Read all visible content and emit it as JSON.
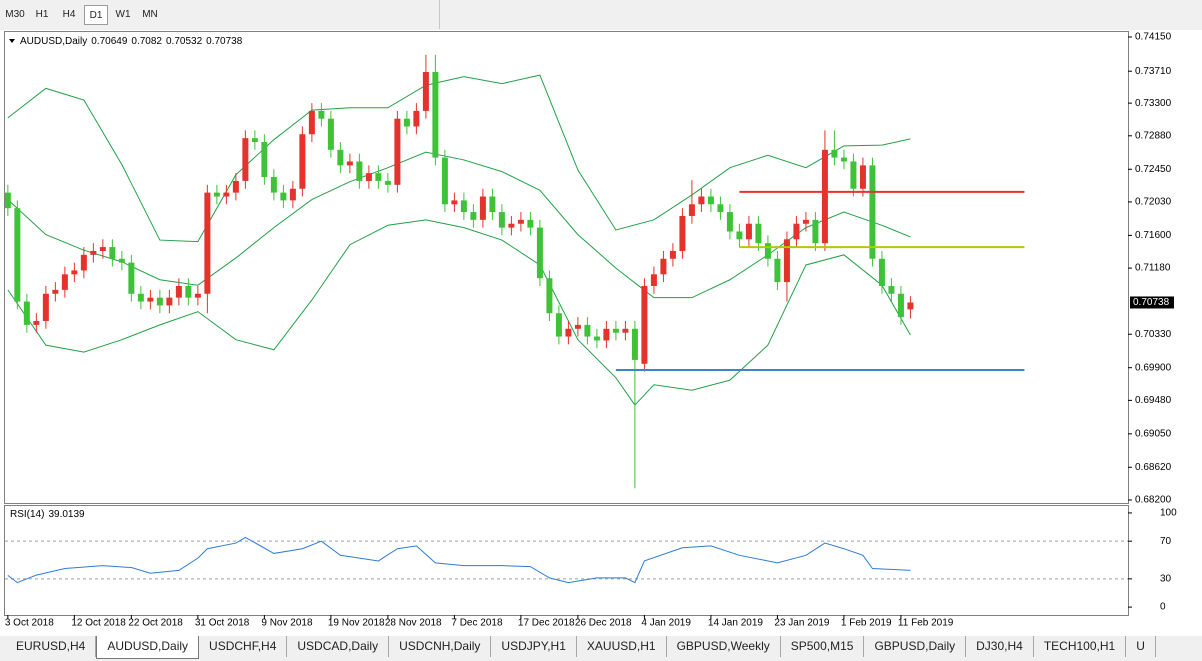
{
  "timeframes": {
    "items": [
      "M30",
      "H1",
      "H4",
      "D1",
      "W1",
      "MN"
    ],
    "active": 3
  },
  "chart_data": [
    {
      "type": "candlestick",
      "title": "AUDUSD,Daily",
      "open": [
        0.7215,
        0.7195,
        0.7075,
        0.7045,
        0.705,
        0.7085,
        0.709,
        0.711,
        0.7115,
        0.7135,
        0.714,
        0.7145,
        0.713,
        0.7125,
        0.7085,
        0.7075,
        0.708,
        0.707,
        0.708,
        0.7095,
        0.708,
        0.7085,
        0.7215,
        0.721,
        0.7215,
        0.723,
        0.7285,
        0.728,
        0.7235,
        0.7215,
        0.7205,
        0.722,
        0.729,
        0.732,
        0.731,
        0.727,
        0.725,
        0.7255,
        0.723,
        0.724,
        0.723,
        0.7225,
        0.731,
        0.73,
        0.732,
        0.737,
        0.726,
        0.72,
        0.7205,
        0.719,
        0.718,
        0.721,
        0.719,
        0.717,
        0.7175,
        0.718,
        0.717,
        0.7105,
        0.706,
        0.703,
        0.704,
        0.7045,
        0.703,
        0.7025,
        0.704,
        0.7035,
        0.704,
        0.6995,
        0.7095,
        0.711,
        0.713,
        0.714,
        0.7185,
        0.72,
        0.721,
        0.72,
        0.719,
        0.7165,
        0.7155,
        0.7175,
        0.715,
        0.713,
        0.71,
        0.7155,
        0.7175,
        0.718,
        0.715,
        0.727,
        0.726,
        0.7255,
        0.722,
        0.725,
        0.713,
        0.7095,
        0.7085,
        0.70649
      ],
      "high": [
        0.7225,
        0.7205,
        0.7085,
        0.706,
        0.7095,
        0.71,
        0.712,
        0.7125,
        0.7145,
        0.715,
        0.7155,
        0.7155,
        0.714,
        0.7135,
        0.7095,
        0.709,
        0.709,
        0.709,
        0.7105,
        0.7105,
        0.7095,
        0.7225,
        0.7225,
        0.7225,
        0.724,
        0.7295,
        0.7295,
        0.729,
        0.7245,
        0.7225,
        0.723,
        0.73,
        0.733,
        0.733,
        0.732,
        0.728,
        0.7265,
        0.7265,
        0.725,
        0.725,
        0.724,
        0.732,
        0.732,
        0.733,
        0.7392,
        0.7392,
        0.727,
        0.7215,
        0.7215,
        0.72,
        0.722,
        0.722,
        0.72,
        0.7185,
        0.719,
        0.719,
        0.718,
        0.7115,
        0.707,
        0.705,
        0.7055,
        0.7055,
        0.704,
        0.705,
        0.705,
        0.705,
        0.705,
        0.7105,
        0.712,
        0.714,
        0.715,
        0.7195,
        0.7231,
        0.722,
        0.722,
        0.721,
        0.72,
        0.7175,
        0.7185,
        0.7185,
        0.716,
        0.714,
        0.7165,
        0.7185,
        0.719,
        0.719,
        0.7295,
        0.7295,
        0.727,
        0.7265,
        0.726,
        0.726,
        0.714,
        0.7105,
        0.7095,
        0.7082
      ],
      "low": [
        0.7185,
        0.7065,
        0.7035,
        0.7035,
        0.704,
        0.7075,
        0.708,
        0.71,
        0.7105,
        0.7125,
        0.713,
        0.712,
        0.7115,
        0.7075,
        0.7065,
        0.7065,
        0.706,
        0.706,
        0.707,
        0.707,
        0.707,
        0.706,
        0.72,
        0.72,
        0.7205,
        0.722,
        0.727,
        0.7225,
        0.7205,
        0.7195,
        0.7195,
        0.721,
        0.728,
        0.73,
        0.726,
        0.724,
        0.724,
        0.722,
        0.722,
        0.722,
        0.7215,
        0.7215,
        0.729,
        0.729,
        0.731,
        0.725,
        0.719,
        0.719,
        0.718,
        0.717,
        0.717,
        0.718,
        0.716,
        0.716,
        0.7165,
        0.716,
        0.7095,
        0.705,
        0.702,
        0.702,
        0.703,
        0.702,
        0.7015,
        0.7015,
        0.7025,
        0.7025,
        0.6835,
        0.6985,
        0.7085,
        0.71,
        0.712,
        0.713,
        0.7175,
        0.719,
        0.719,
        0.718,
        0.7155,
        0.7145,
        0.7145,
        0.714,
        0.712,
        0.709,
        0.7075,
        0.7145,
        0.7165,
        0.714,
        0.714,
        0.725,
        0.7245,
        0.721,
        0.721,
        0.712,
        0.7085,
        0.7075,
        0.7045,
        0.70532
      ],
      "close": [
        0.7195,
        0.7075,
        0.7045,
        0.705,
        0.7085,
        0.709,
        0.711,
        0.7115,
        0.7135,
        0.714,
        0.7145,
        0.713,
        0.7125,
        0.7085,
        0.7075,
        0.708,
        0.707,
        0.708,
        0.7095,
        0.708,
        0.7085,
        0.7215,
        0.721,
        0.7215,
        0.723,
        0.7285,
        0.728,
        0.7235,
        0.7215,
        0.7205,
        0.722,
        0.729,
        0.732,
        0.731,
        0.727,
        0.725,
        0.7255,
        0.723,
        0.724,
        0.723,
        0.7225,
        0.731,
        0.73,
        0.732,
        0.737,
        0.726,
        0.72,
        0.7205,
        0.719,
        0.718,
        0.721,
        0.719,
        0.717,
        0.7175,
        0.718,
        0.717,
        0.7105,
        0.706,
        0.703,
        0.704,
        0.7045,
        0.703,
        0.7025,
        0.704,
        0.7035,
        0.704,
        0.7,
        0.7095,
        0.711,
        0.713,
        0.714,
        0.7185,
        0.72,
        0.721,
        0.72,
        0.719,
        0.7165,
        0.7155,
        0.7175,
        0.715,
        0.713,
        0.71,
        0.7155,
        0.7175,
        0.718,
        0.715,
        0.727,
        0.726,
        0.7255,
        0.722,
        0.725,
        0.713,
        0.7095,
        0.7085,
        0.7055,
        0.70738
      ],
      "up_color": "#e5322d",
      "down_color": "#3fc23a",
      "lines": [
        {
          "color": "#22a046",
          "x": [
            0,
            4,
            8,
            12,
            16,
            20,
            24,
            28,
            32,
            36,
            40,
            44,
            48,
            52,
            56,
            60,
            64,
            68,
            72,
            76,
            80,
            84,
            88,
            92,
            95
          ],
          "values": [
            0.7311,
            0.7349,
            0.7334,
            0.7251,
            0.7154,
            0.7152,
            0.7238,
            0.7283,
            0.7321,
            0.7324,
            0.7324,
            0.7353,
            0.7364,
            0.7355,
            0.7366,
            0.7244,
            0.7167,
            0.718,
            0.7212,
            0.7247,
            0.7263,
            0.7247,
            0.7275,
            0.7276,
            0.7284
          ]
        },
        {
          "color": "#22a046",
          "x": [
            0,
            4,
            8,
            12,
            16,
            20,
            24,
            28,
            32,
            36,
            40,
            44,
            48,
            52,
            56,
            60,
            64,
            68,
            72,
            76,
            80,
            84,
            88,
            92,
            95
          ],
          "values": [
            0.7206,
            0.7161,
            0.7141,
            0.7126,
            0.7103,
            0.7096,
            0.7131,
            0.717,
            0.7206,
            0.7229,
            0.7247,
            0.7267,
            0.7257,
            0.7242,
            0.7218,
            0.7161,
            0.7118,
            0.708,
            0.708,
            0.7103,
            0.7135,
            0.717,
            0.719,
            0.7173,
            0.7158
          ]
        },
        {
          "color": "#22a046",
          "x": [
            0,
            4,
            8,
            12,
            16,
            20,
            24,
            28,
            32,
            36,
            40,
            44,
            48,
            52,
            56,
            60,
            64,
            66,
            68,
            72,
            76,
            80,
            84,
            88,
            92,
            95
          ],
          "values": [
            0.709,
            0.7019,
            0.701,
            0.7026,
            0.7045,
            0.7062,
            0.7026,
            0.7013,
            0.7077,
            0.7148,
            0.7173,
            0.718,
            0.717,
            0.7154,
            0.7122,
            0.7026,
            0.6977,
            0.6942,
            0.6968,
            0.6961,
            0.6974,
            0.7019,
            0.7122,
            0.7135,
            0.7096,
            0.7032
          ]
        }
      ],
      "hlines": [
        {
          "value": 0.7216,
          "color": "#e8322a",
          "x": [
            77,
            107
          ]
        },
        {
          "value": 0.7145,
          "color": "#b6c800",
          "x": [
            77,
            107
          ]
        },
        {
          "value": 0.6987,
          "color": "#3d85c6",
          "x": [
            64,
            107
          ]
        }
      ],
      "xlim": [
        -0.3,
        117.9
      ],
      "xticks": [
        {
          "value": 0,
          "label": "3 Oct 2018"
        },
        {
          "value": 7,
          "label": "12 Oct 2018"
        },
        {
          "value": 13,
          "label": "22 Oct 2018"
        },
        {
          "value": 20,
          "label": "31 Oct 2018"
        },
        {
          "value": 27,
          "label": "9 Nov 2018"
        },
        {
          "value": 34,
          "label": "19 Nov 2018"
        },
        {
          "value": 40,
          "label": "28 Nov 2018"
        },
        {
          "value": 47,
          "label": "7 Dec 2018"
        },
        {
          "value": 54,
          "label": "17 Dec 2018"
        },
        {
          "value": 60,
          "label": "26 Dec 2018"
        },
        {
          "value": 67,
          "label": "4 Jan 2019"
        },
        {
          "value": 74,
          "label": "14 Jan 2019"
        },
        {
          "value": 81,
          "label": "23 Jan 2019"
        },
        {
          "value": 88,
          "label": "1 Feb 2019"
        },
        {
          "value": 94,
          "label": "11 Feb 2019"
        }
      ],
      "ylim": [
        0.68161,
        0.74214
      ],
      "yticks": [
        {
          "value": 0.7415,
          "label": "0.74150"
        },
        {
          "value": 0.7371,
          "label": "0.73710"
        },
        {
          "value": 0.733,
          "label": "0.73300"
        },
        {
          "value": 0.7288,
          "label": "0.72880"
        },
        {
          "value": 0.7245,
          "label": "0.72450"
        },
        {
          "value": 0.7203,
          "label": "0.72030"
        },
        {
          "value": 0.716,
          "label": "0.71600"
        },
        {
          "value": 0.7118,
          "label": "0.71180"
        },
        {
          "value": 0.7033,
          "label": "0.70330"
        },
        {
          "value": 0.699,
          "label": "0.69900"
        },
        {
          "value": 0.6948,
          "label": "0.69480"
        },
        {
          "value": 0.6905,
          "label": "0.69050"
        },
        {
          "value": 0.6862,
          "label": "0.68620"
        },
        {
          "value": 0.682,
          "label": "0.68200"
        }
      ]
    },
    {
      "type": "line",
      "title": "RSI(14)",
      "color": "#2f7bd6",
      "x": [
        0,
        1,
        3,
        6,
        10,
        13,
        15,
        18,
        20,
        21,
        24,
        25,
        28,
        31,
        33,
        35,
        39,
        41,
        43,
        45,
        48,
        52,
        55,
        57,
        59,
        62,
        65,
        66,
        67,
        71,
        74,
        77,
        81,
        84,
        86,
        88,
        90,
        91,
        95
      ],
      "values": [
        33.7,
        26,
        34,
        41,
        44,
        42,
        36,
        39,
        52,
        62,
        68,
        74,
        57,
        62,
        70,
        55,
        49,
        62,
        65,
        47,
        44,
        44,
        43,
        31,
        26,
        31,
        31,
        26,
        49,
        63,
        65,
        55,
        47,
        55,
        68,
        62,
        55,
        41,
        39.0139
      ],
      "xlim": [
        -0.3,
        117.9
      ],
      "ylim": [
        -8.4,
        106.3
      ],
      "yticks": [
        0,
        30,
        70,
        100
      ],
      "levels": [
        30,
        70
      ]
    }
  ],
  "tabs": {
    "items": [
      "EURUSD,H4",
      "AUDUSD,Daily",
      "USDCHF,H4",
      "USDCAD,Daily",
      "USDCNH,Daily",
      "USDJPY,H1",
      "XAUUSD,H1",
      "GBPUSD,Weekly",
      "SP500,M15",
      "GBPUSD,Daily",
      "DJ30,H4",
      "TECH100,H1",
      "U"
    ],
    "active": 1
  }
}
